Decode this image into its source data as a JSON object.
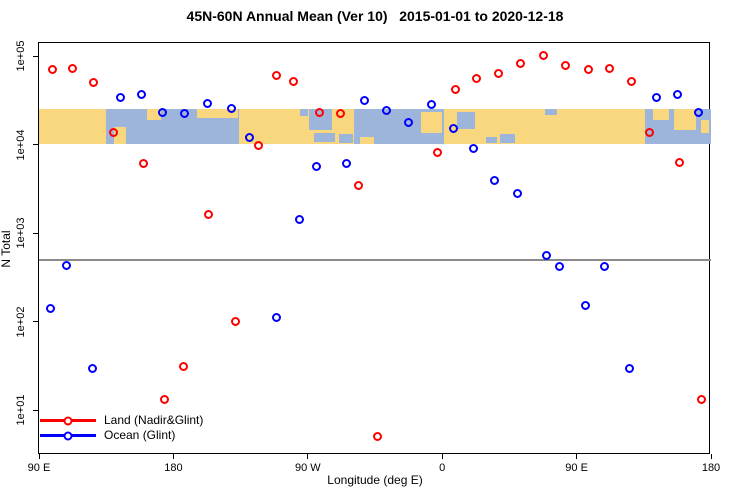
{
  "title": "45N-60N Annual Mean (Ver 10)   2015-01-01 to 2020-12-18",
  "axes": {
    "x_label": "Longitude (deg E)",
    "y_label": "N Total",
    "x_ticks": [
      {
        "lon": 90,
        "label": "90 E"
      },
      {
        "lon": 180,
        "label": "180"
      },
      {
        "lon": 270,
        "label": "90 W"
      },
      {
        "lon": 360,
        "label": "0"
      },
      {
        "lon": 450,
        "label": "90 E"
      },
      {
        "lon": 540,
        "label": "180"
      }
    ],
    "y_ticks": [
      {
        "value": 100000,
        "label": "1e+05"
      },
      {
        "value": 10000,
        "label": "1e+04"
      },
      {
        "value": 1000,
        "label": "1e+03"
      },
      {
        "value": 100,
        "label": "1e+02"
      },
      {
        "value": 10,
        "label": "1e+01"
      }
    ]
  },
  "legend": {
    "items": [
      {
        "label": "Land (Nadir&Glint)",
        "color": "#FF0000"
      },
      {
        "label": "Ocean (Glint)",
        "color": "#0000FF"
      }
    ]
  },
  "chart_data": {
    "type": "scatter",
    "title": "45N-60N Annual Mean (Ver 10)   2015-01-01 to 2020-12-18",
    "xlabel": "Longitude (deg E)",
    "ylabel": "N Total",
    "x_axis": {
      "units": "deg E continuing eastward",
      "range": [
        90,
        540
      ],
      "grid": false
    },
    "y_axis": {
      "scale": "log10",
      "range": [
        3.5,
        140000
      ],
      "grid": false
    },
    "threshold_line": {
      "value": 500,
      "color": "#8B8B8B"
    },
    "map_band": {
      "description": "45N-60N world map strip",
      "value_range": [
        10000,
        25500
      ],
      "land_color": "#F9D77F",
      "ocean_color": "#9DB4DB",
      "ocean_lon_ranges": [
        [
          135,
          224
        ],
        [
          301,
          361
        ],
        [
          496,
          540
        ]
      ],
      "land_patches": [
        {
          "lon": [
            140,
            148
          ],
          "band_frac": [
            0.5,
            1
          ]
        },
        {
          "lon": [
            162,
            172
          ],
          "band_frac": [
            0,
            0.33
          ]
        },
        {
          "lon": [
            196,
            223
          ],
          "band_frac": [
            0,
            0.25
          ]
        },
        {
          "lon": [
            305,
            314
          ],
          "band_frac": [
            0.78,
            1
          ]
        },
        {
          "lon": [
            346,
            360
          ],
          "band_frac": [
            0.11,
            0.67
          ]
        },
        {
          "lon": [
            501,
            512
          ],
          "band_frac": [
            0,
            0.33
          ]
        },
        {
          "lon": [
            515,
            530
          ],
          "band_frac": [
            0,
            0.61
          ]
        },
        {
          "lon": [
            533,
            539
          ],
          "band_frac": [
            0.33,
            0.67
          ]
        }
      ],
      "ocean_patches": [
        {
          "lon": [
            265,
            270
          ],
          "band_frac": [
            0,
            0.22
          ]
        },
        {
          "lon": [
            271,
            286
          ],
          "band_frac": [
            0,
            0.61
          ]
        },
        {
          "lon": [
            274,
            288
          ],
          "band_frac": [
            0.67,
            0.94
          ]
        },
        {
          "lon": [
            291,
            300
          ],
          "band_frac": [
            0.72,
            0.97
          ]
        },
        {
          "lon": [
            370,
            382
          ],
          "band_frac": [
            0.11,
            0.56
          ]
        },
        {
          "lon": [
            389,
            397
          ],
          "band_frac": [
            0.78,
            0.97
          ]
        },
        {
          "lon": [
            399,
            409
          ],
          "band_frac": [
            0.72,
            0.97
          ]
        },
        {
          "lon": [
            429,
            437
          ],
          "band_frac": [
            0,
            0.19
          ]
        }
      ]
    },
    "series": [
      {
        "name": "Land (Nadir&Glint)",
        "color": "#FF0000",
        "marker": "open-circle",
        "points": [
          [
            99,
            69000
          ],
          [
            113,
            71000
          ],
          [
            127,
            50000
          ],
          [
            140,
            13500
          ],
          [
            160,
            6000
          ],
          [
            174,
            13
          ],
          [
            187,
            31
          ],
          [
            204,
            1600
          ],
          [
            222,
            100
          ],
          [
            237,
            9600
          ],
          [
            249,
            59000
          ],
          [
            261,
            51000
          ],
          [
            278,
            23000
          ],
          [
            292,
            22000
          ],
          [
            304,
            3400
          ],
          [
            317,
            5
          ],
          [
            357,
            8000
          ],
          [
            369,
            41000
          ],
          [
            383,
            55000
          ],
          [
            398,
            63000
          ],
          [
            413,
            81000
          ],
          [
            428,
            100000
          ],
          [
            443,
            77000
          ],
          [
            458,
            70000
          ],
          [
            472,
            71000
          ],
          [
            487,
            51000
          ],
          [
            499,
            13500
          ],
          [
            519,
            6200
          ],
          [
            534,
            13
          ]
        ]
      },
      {
        "name": "Ocean (Glint)",
        "color": "#0000FF",
        "marker": "open-circle",
        "points": [
          [
            98,
            140
          ],
          [
            109,
            420
          ],
          [
            126,
            29
          ],
          [
            145,
            34000
          ],
          [
            159,
            36000
          ],
          [
            173,
            23000
          ],
          [
            188,
            22000
          ],
          [
            203,
            29000
          ],
          [
            219,
            25000
          ],
          [
            231,
            12000
          ],
          [
            249,
            110
          ],
          [
            265,
            1400
          ],
          [
            276,
            5600
          ],
          [
            296,
            6000
          ],
          [
            308,
            31000
          ],
          [
            323,
            24000
          ],
          [
            338,
            17500
          ],
          [
            353,
            28000
          ],
          [
            368,
            15000
          ],
          [
            381,
            8900
          ],
          [
            395,
            3900
          ],
          [
            411,
            2800
          ],
          [
            430,
            550
          ],
          [
            439,
            410
          ],
          [
            456,
            150
          ],
          [
            469,
            410
          ],
          [
            486,
            29
          ],
          [
            504,
            34000
          ],
          [
            518,
            36000
          ],
          [
            532,
            23000
          ]
        ]
      }
    ]
  }
}
